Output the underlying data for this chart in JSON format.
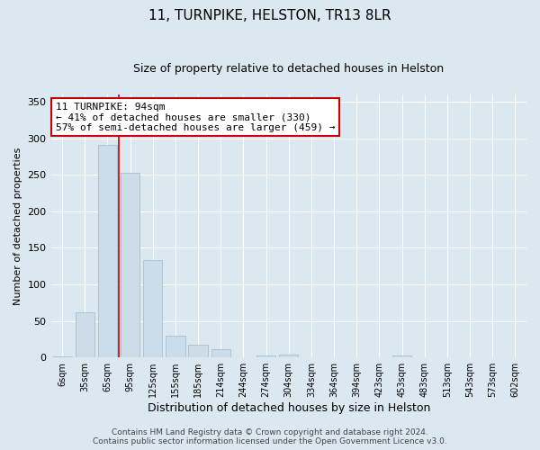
{
  "title": "11, TURNPIKE, HELSTON, TR13 8LR",
  "subtitle": "Size of property relative to detached houses in Helston",
  "xlabel": "Distribution of detached houses by size in Helston",
  "ylabel": "Number of detached properties",
  "bar_labels": [
    "6sqm",
    "35sqm",
    "65sqm",
    "95sqm",
    "125sqm",
    "155sqm",
    "185sqm",
    "214sqm",
    "244sqm",
    "274sqm",
    "304sqm",
    "334sqm",
    "364sqm",
    "394sqm",
    "423sqm",
    "453sqm",
    "483sqm",
    "513sqm",
    "543sqm",
    "573sqm",
    "602sqm"
  ],
  "bar_values": [
    2,
    62,
    291,
    253,
    133,
    30,
    18,
    11,
    0,
    3,
    4,
    0,
    0,
    0,
    0,
    3,
    0,
    0,
    0,
    0,
    0
  ],
  "bar_color": "#ccdce8",
  "bar_edgecolor": "#a8c0d4",
  "vline_index": 2.5,
  "vline_color": "#cc0000",
  "ylim": [
    0,
    360
  ],
  "yticks": [
    0,
    50,
    100,
    150,
    200,
    250,
    300,
    350
  ],
  "annotation_text": "11 TURNPIKE: 94sqm\n← 41% of detached houses are smaller (330)\n57% of semi-detached houses are larger (459) →",
  "annotation_box_facecolor": "#ffffff",
  "annotation_box_edgecolor": "#cc0000",
  "footer_line1": "Contains HM Land Registry data © Crown copyright and database right 2024.",
  "footer_line2": "Contains public sector information licensed under the Open Government Licence v3.0.",
  "background_color": "#dce8f0",
  "plot_background_color": "#dce8f0",
  "title_fontsize": 11,
  "subtitle_fontsize": 9,
  "ylabel_fontsize": 8,
  "xlabel_fontsize": 9,
  "tick_fontsize": 7,
  "annotation_fontsize": 8,
  "footer_fontsize": 6.5
}
